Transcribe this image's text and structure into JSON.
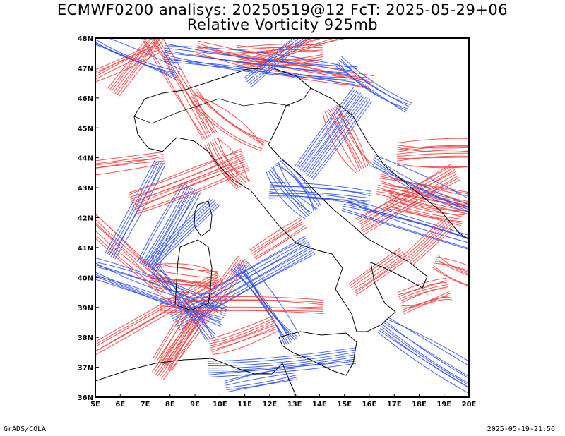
{
  "title": {
    "line1": "ECMWF0200 analisys: 20250519@12 FcT: 2025-05-29+06",
    "line2": "Relative Vorticity 925mb"
  },
  "map": {
    "lon_labels": [
      "5E",
      "6E",
      "7E",
      "8E",
      "9E",
      "10E",
      "11E",
      "12E",
      "13E",
      "14E",
      "15E",
      "16E",
      "17E",
      "18E",
      "19E",
      "20E"
    ],
    "lat_labels": [
      "48N",
      "47N",
      "46N",
      "45N",
      "44N",
      "43N",
      "42N",
      "41N",
      "40N",
      "39N",
      "38N",
      "37N",
      "36N"
    ],
    "lon_range": [
      5,
      20
    ],
    "lat_range": [
      36,
      48
    ],
    "colors": {
      "positive_contour": "#f04040",
      "negative_contour": "#3050f0",
      "coastline": "#000000",
      "frame": "#000000"
    }
  },
  "footer": {
    "left": "GrADS/COLA",
    "right": "2025-05-19-21:56"
  }
}
